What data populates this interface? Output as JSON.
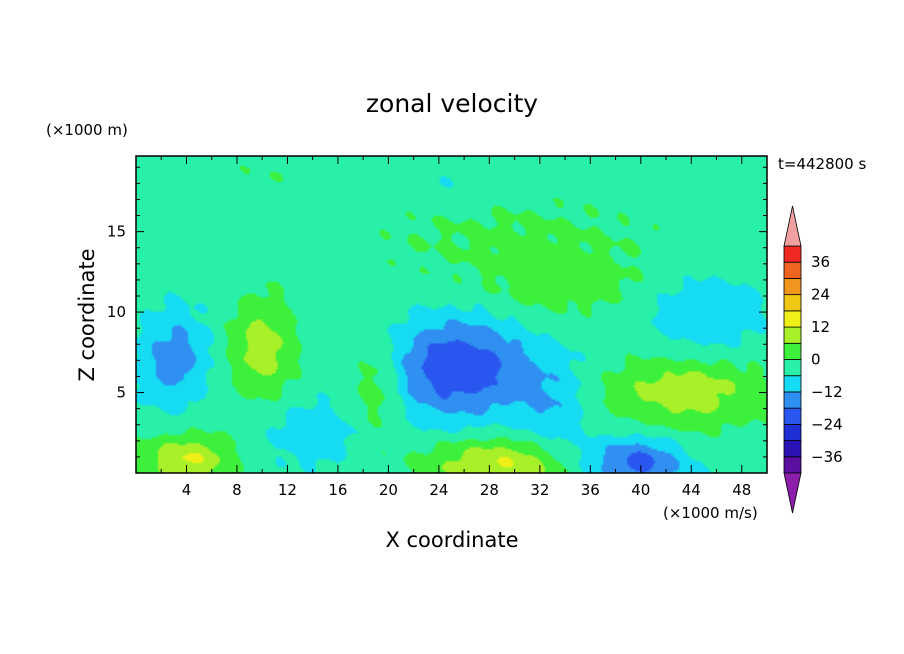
{
  "chart_data": {
    "type": "heatmap",
    "title": "zonal velocity",
    "xlabel": "X coordinate",
    "ylabel": "Z coordinate",
    "x_unit": "(×1000 m/s)",
    "y_unit": "(×1000 m)",
    "time_label": "t=442800 s",
    "xlim": [
      0,
      50
    ],
    "ylim": [
      0,
      19.7
    ],
    "x_ticks": [
      4,
      8,
      12,
      16,
      20,
      24,
      28,
      32,
      36,
      40,
      44,
      48
    ],
    "y_ticks": [
      5,
      10,
      15
    ],
    "colorbar": {
      "levels": [
        -42,
        -36,
        -30,
        -24,
        -18,
        -12,
        -6,
        0,
        6,
        12,
        18,
        24,
        30,
        36,
        42
      ],
      "tick_labels": [
        "36",
        "24",
        "12",
        "0",
        "−12",
        "−24",
        "−36"
      ],
      "tick_values": [
        36,
        24,
        12,
        0,
        -12,
        -24,
        -36
      ],
      "colors": [
        "#5a0fa0",
        "#2a12b4",
        "#1f2fd6",
        "#2a56f0",
        "#2f90f2",
        "#15dcf2",
        "#28f0a8",
        "#3cf03c",
        "#a8f028",
        "#f0f018",
        "#f0c814",
        "#f0961e",
        "#f06422",
        "#f02a22"
      ],
      "under_color": "#8c1eaa",
      "over_color": "#f0a0a0"
    },
    "features": [
      {
        "x": 25.5,
        "z": 6.5,
        "value": -20,
        "sx": 5.5,
        "sz": 3.2
      },
      {
        "x": 39.5,
        "z": 0.6,
        "value": -18,
        "sx": 4.0,
        "sz": 1.6
      },
      {
        "x": 29.0,
        "z": 0.6,
        "value": 16,
        "sx": 6.0,
        "sz": 1.6
      },
      {
        "x": 4.0,
        "z": 0.8,
        "value": 16,
        "sx": 3.5,
        "sz": 1.5
      },
      {
        "x": 10.0,
        "z": 7.8,
        "value": 13,
        "sx": 2.5,
        "sz": 3.0
      },
      {
        "x": 43.5,
        "z": 5.0,
        "value": 13,
        "sx": 6.0,
        "sz": 2.2
      },
      {
        "x": 19.2,
        "z": 5.5,
        "value": 9,
        "sx": 2.0,
        "sz": 3.0
      },
      {
        "x": 3.0,
        "z": 7.2,
        "value": -12,
        "sx": 2.8,
        "sz": 3.0
      },
      {
        "x": 14.0,
        "z": 2.4,
        "value": -8,
        "sx": 3.5,
        "sz": 2.0
      },
      {
        "x": 45.0,
        "z": 9.8,
        "value": -8,
        "sx": 5.0,
        "sz": 2.5
      },
      {
        "x": 33.0,
        "z": 4.0,
        "value": -8,
        "sx": 3.0,
        "sz": 3.5
      },
      {
        "x": 30.0,
        "z": 14.5,
        "value": 4,
        "sx": 12.0,
        "sz": 3.0
      },
      {
        "x": 34.0,
        "z": 11.5,
        "value": 5,
        "sx": 7.0,
        "sz": 2.0
      },
      {
        "x": 10.0,
        "z": 18.5,
        "value": 2,
        "sx": 8.0,
        "sz": 1.2
      },
      {
        "x": 25.0,
        "z": 18.0,
        "value": -3,
        "sx": 6.0,
        "sz": 1.2
      }
    ],
    "background_value": -3
  }
}
